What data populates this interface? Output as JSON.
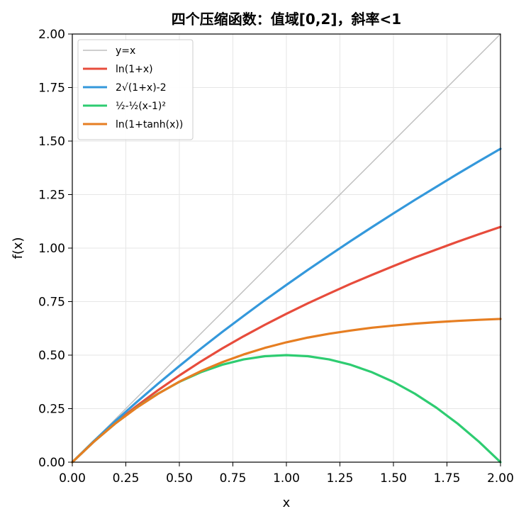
{
  "chart_data": {
    "type": "line",
    "title": "四个压缩函数：值域[0,2]，斜率<1",
    "xlabel": "x",
    "ylabel": "f(x)",
    "xlim": [
      0,
      2
    ],
    "ylim": [
      0,
      2
    ],
    "xticks": [
      "0.00",
      "0.25",
      "0.50",
      "0.75",
      "1.00",
      "1.25",
      "1.50",
      "1.75",
      "2.00"
    ],
    "yticks": [
      "0.00",
      "0.25",
      "0.50",
      "0.75",
      "1.00",
      "1.25",
      "1.50",
      "1.75",
      "2.00"
    ],
    "grid": true,
    "legend_position": "top-left",
    "x": [
      0,
      0.1,
      0.2,
      0.3,
      0.4,
      0.5,
      0.6,
      0.7,
      0.8,
      0.9,
      1.0,
      1.1,
      1.2,
      1.3,
      1.4,
      1.5,
      1.6,
      1.7,
      1.8,
      1.9,
      2.0
    ],
    "series": [
      {
        "name": "y=x",
        "color": "#bdbdbd",
        "values": [
          0,
          0.1,
          0.2,
          0.3,
          0.4,
          0.5,
          0.6,
          0.7,
          0.8,
          0.9,
          1.0,
          1.1,
          1.2,
          1.3,
          1.4,
          1.5,
          1.6,
          1.7,
          1.8,
          1.9,
          2.0
        ]
      },
      {
        "name": "ln(1+x)",
        "color": "#e74c3c",
        "values": [
          0,
          0.095,
          0.182,
          0.262,
          0.336,
          0.405,
          0.47,
          0.531,
          0.588,
          0.642,
          0.693,
          0.742,
          0.788,
          0.833,
          0.875,
          0.916,
          0.956,
          0.993,
          1.03,
          1.065,
          1.099
        ]
      },
      {
        "name": "2√(1+x)-2",
        "color": "#3498db",
        "values": [
          0,
          0.098,
          0.191,
          0.28,
          0.366,
          0.449,
          0.53,
          0.608,
          0.683,
          0.757,
          0.828,
          0.898,
          0.966,
          1.033,
          1.098,
          1.162,
          1.225,
          1.286,
          1.347,
          1.406,
          1.464
        ]
      },
      {
        "name": "½-½(x-1)²",
        "color": "#2ecc71",
        "values": [
          0,
          0.095,
          0.18,
          0.255,
          0.32,
          0.375,
          0.42,
          0.455,
          0.48,
          0.495,
          0.5,
          0.495,
          0.48,
          0.455,
          0.42,
          0.375,
          0.32,
          0.255,
          0.18,
          0.095,
          0
        ]
      },
      {
        "name": "ln(1+tanh(x))",
        "color": "#e67e22",
        "values": [
          0,
          0.095,
          0.18,
          0.254,
          0.319,
          0.376,
          0.425,
          0.467,
          0.503,
          0.534,
          0.56,
          0.582,
          0.6,
          0.615,
          0.628,
          0.638,
          0.647,
          0.654,
          0.66,
          0.665,
          0.669
        ]
      }
    ]
  }
}
